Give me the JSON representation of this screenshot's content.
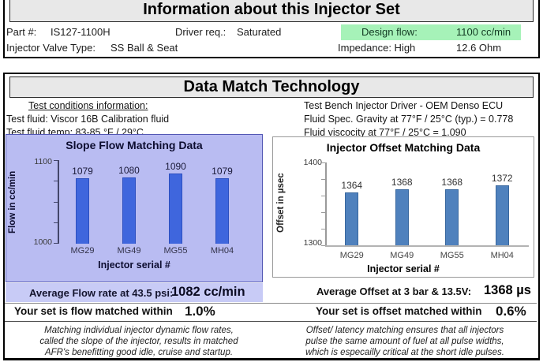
{
  "info": {
    "title": "Information about this Injector Set",
    "part_label": "Part #:",
    "part_value": "IS127-1100H",
    "driver_label": "Driver req.:",
    "driver_value": "Saturated",
    "design_flow_label": "Design flow:",
    "design_flow_value": "1100 cc/min",
    "design_flow_highlight_color": "#a6f2b8",
    "valve_label": "Injector Valve Type:",
    "valve_value": "SS Ball & Seat",
    "impedance_label": "Impedance: High",
    "impedance_value": "12.6 Ohm"
  },
  "dmt": {
    "title": "Data Match Technology",
    "conditions": {
      "heading": "Test conditions information:",
      "fluid": "Test fluid: Viscor 16B Calibration fluid",
      "temp": "Test fluid temp: 83-85 °F / 29°C"
    },
    "bench": {
      "driver": "Test Bench Injector Driver - OEM Denso ECU",
      "gravity": "Fluid Spec. Gravity at 77°F / 25°C (typ.) = 0.778",
      "viscosity": "Fluid viscocity at 77°F / 25°C = 1.090"
    }
  },
  "chart_data": [
    {
      "type": "bar",
      "title": "Slope Flow Matching Data",
      "categories": [
        "MG29",
        "MG49",
        "MG55",
        "MH04"
      ],
      "values": [
        1079,
        1080,
        1090,
        1079
      ],
      "xlabel": "Injector serial #",
      "ylabel": "Flow in cc/min",
      "ylim": [
        1000,
        1100
      ],
      "grid": false,
      "legend": "none",
      "bar_color": "#3f66dd",
      "bar_border": "#2c4fc0",
      "panel_bg": "#b9bcf2",
      "panel_border": "#5358b4"
    },
    {
      "type": "bar",
      "title": "Injector Offset Matching Data",
      "categories": [
        "MG29",
        "MG49",
        "MG55",
        "MH04"
      ],
      "values": [
        1364,
        1368,
        1368,
        1372
      ],
      "xlabel": "Injector serial #",
      "ylabel": "Offset in µsec",
      "ylim": [
        1300,
        1400
      ],
      "grid": false,
      "legend": "none",
      "bar_color": "#4f81bd",
      "bar_border": "#38679e",
      "panel_bg": "#ffffff",
      "panel_border": "#999999"
    }
  ],
  "summaries": {
    "left": {
      "avg_label": "Average Flow rate at 43.5 psi:",
      "avg_value": "1082 cc/min",
      "avg_row_bg": "#c8cbf6",
      "matched_label": "Your set is flow matched within",
      "matched_value": "1.0%",
      "notes": [
        "Matching individual injector dynamic flow rates,",
        "called the slope of the injector, results in matched",
        "AFR's benefitting good idle, cruise and startup."
      ]
    },
    "right": {
      "avg_label": "Average Offset at 3 bar & 13.5V:",
      "avg_value": "1368 µs",
      "matched_label": "Your set is offset matched within",
      "matched_value": "0.6%",
      "notes": [
        "Offset/ latency matching ensures that all injectors",
        "pulse the same amount of fuel at all pulse widths,",
        "which is especailly critical at the short idle pulses."
      ]
    }
  }
}
